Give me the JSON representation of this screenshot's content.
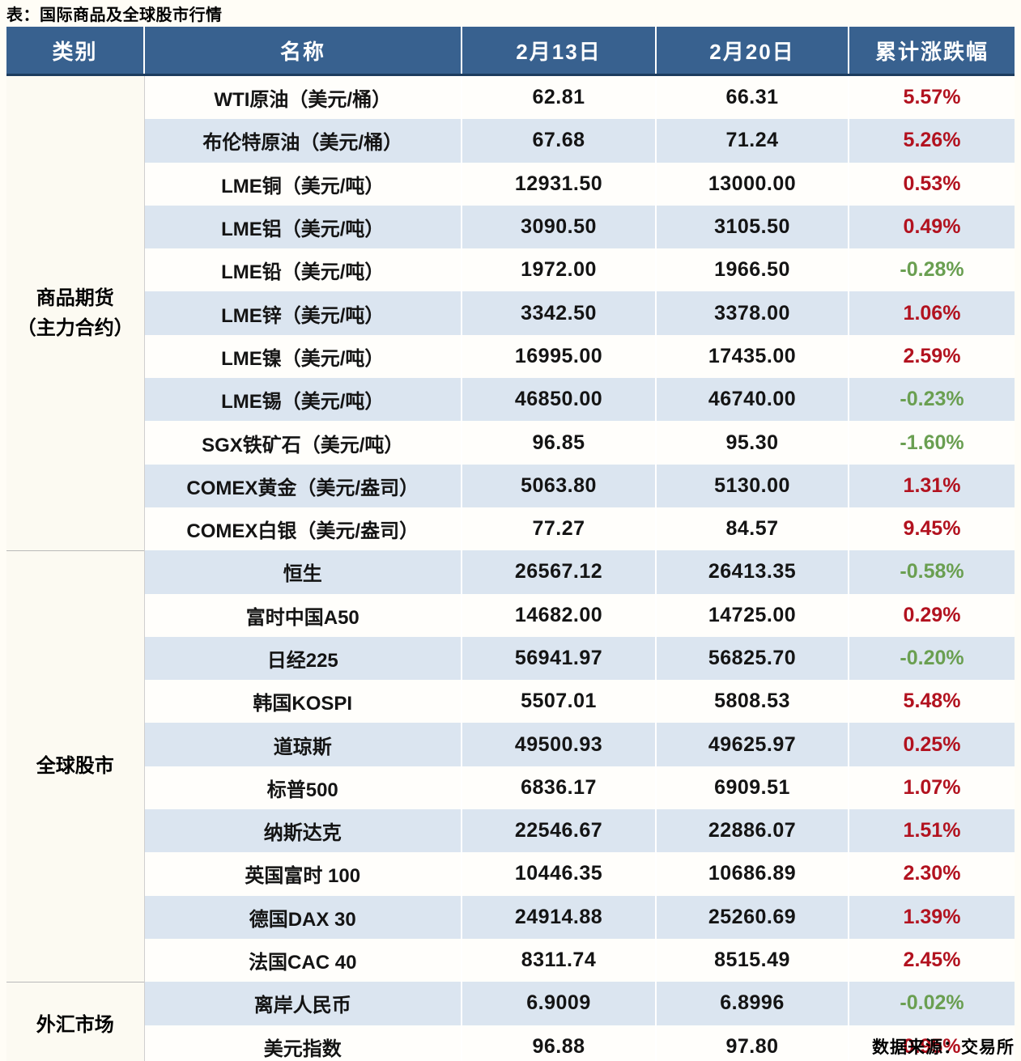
{
  "title": "表：国际商品及全球股市行情",
  "source_label": "数据来源：交易所",
  "colors": {
    "header_bg": "#38618f",
    "stripe": "#dbe5f0",
    "up_red": "#b2121f",
    "down_green": "#6a9f51",
    "bottom_rule": "#2d5d8e",
    "page_bg": "#fffdf6"
  },
  "chart_data": {
    "type": "table",
    "title": "国际商品及全球股市行情",
    "columns": [
      "类别",
      "名称",
      "2月13日",
      "2月20日",
      "累计涨跌幅"
    ],
    "groups": [
      {
        "category_lines": [
          "商品期货",
          "（主力合约）"
        ],
        "rows": [
          {
            "name": "WTI原油（美元/桶）",
            "feb13": "62.81",
            "feb20": "66.31",
            "change": "5.57%",
            "dir": "up"
          },
          {
            "name": "布伦特原油（美元/桶）",
            "feb13": "67.68",
            "feb20": "71.24",
            "change": "5.26%",
            "dir": "up"
          },
          {
            "name": "LME铜（美元/吨）",
            "feb13": "12931.50",
            "feb20": "13000.00",
            "change": "0.53%",
            "dir": "up"
          },
          {
            "name": "LME铝（美元/吨）",
            "feb13": "3090.50",
            "feb20": "3105.50",
            "change": "0.49%",
            "dir": "up"
          },
          {
            "name": "LME铅（美元/吨）",
            "feb13": "1972.00",
            "feb20": "1966.50",
            "change": "-0.28%",
            "dir": "down"
          },
          {
            "name": "LME锌（美元/吨）",
            "feb13": "3342.50",
            "feb20": "3378.00",
            "change": "1.06%",
            "dir": "up"
          },
          {
            "name": "LME镍（美元/吨）",
            "feb13": "16995.00",
            "feb20": "17435.00",
            "change": "2.59%",
            "dir": "up"
          },
          {
            "name": "LME锡（美元/吨）",
            "feb13": "46850.00",
            "feb20": "46740.00",
            "change": "-0.23%",
            "dir": "down"
          },
          {
            "name": "SGX铁矿石（美元/吨）",
            "feb13": "96.85",
            "feb20": "95.30",
            "change": "-1.60%",
            "dir": "down"
          },
          {
            "name": "COMEX黄金（美元/盎司）",
            "feb13": "5063.80",
            "feb20": "5130.00",
            "change": "1.31%",
            "dir": "up"
          },
          {
            "name": "COMEX白银（美元/盎司）",
            "feb13": "77.27",
            "feb20": "84.57",
            "change": "9.45%",
            "dir": "up"
          }
        ]
      },
      {
        "category_lines": [
          "全球股市"
        ],
        "rows": [
          {
            "name": "恒生",
            "feb13": "26567.12",
            "feb20": "26413.35",
            "change": "-0.58%",
            "dir": "down"
          },
          {
            "name": "富时中国A50",
            "feb13": "14682.00",
            "feb20": "14725.00",
            "change": "0.29%",
            "dir": "up"
          },
          {
            "name": "日经225",
            "feb13": "56941.97",
            "feb20": "56825.70",
            "change": "-0.20%",
            "dir": "down"
          },
          {
            "name": "韩国KOSPI",
            "feb13": "5507.01",
            "feb20": "5808.53",
            "change": "5.48%",
            "dir": "up"
          },
          {
            "name": "道琼斯",
            "feb13": "49500.93",
            "feb20": "49625.97",
            "change": "0.25%",
            "dir": "up"
          },
          {
            "name": "标普500",
            "feb13": "6836.17",
            "feb20": "6909.51",
            "change": "1.07%",
            "dir": "up"
          },
          {
            "name": "纳斯达克",
            "feb13": "22546.67",
            "feb20": "22886.07",
            "change": "1.51%",
            "dir": "up"
          },
          {
            "name": "英国富时 100",
            "feb13": "10446.35",
            "feb20": "10686.89",
            "change": "2.30%",
            "dir": "up"
          },
          {
            "name": "德国DAX 30",
            "feb13": "24914.88",
            "feb20": "25260.69",
            "change": "1.39%",
            "dir": "up"
          },
          {
            "name": "法国CAC 40",
            "feb13": "8311.74",
            "feb20": "8515.49",
            "change": "2.45%",
            "dir": "up"
          }
        ]
      },
      {
        "category_lines": [
          "外汇市场"
        ],
        "rows": [
          {
            "name": "离岸人民币",
            "feb13": "6.9009",
            "feb20": "6.8996",
            "change": "-0.02%",
            "dir": "down"
          },
          {
            "name": "美元指数",
            "feb13": "96.88",
            "feb20": "97.80",
            "change": "0.95%",
            "dir": "up"
          }
        ]
      }
    ]
  }
}
